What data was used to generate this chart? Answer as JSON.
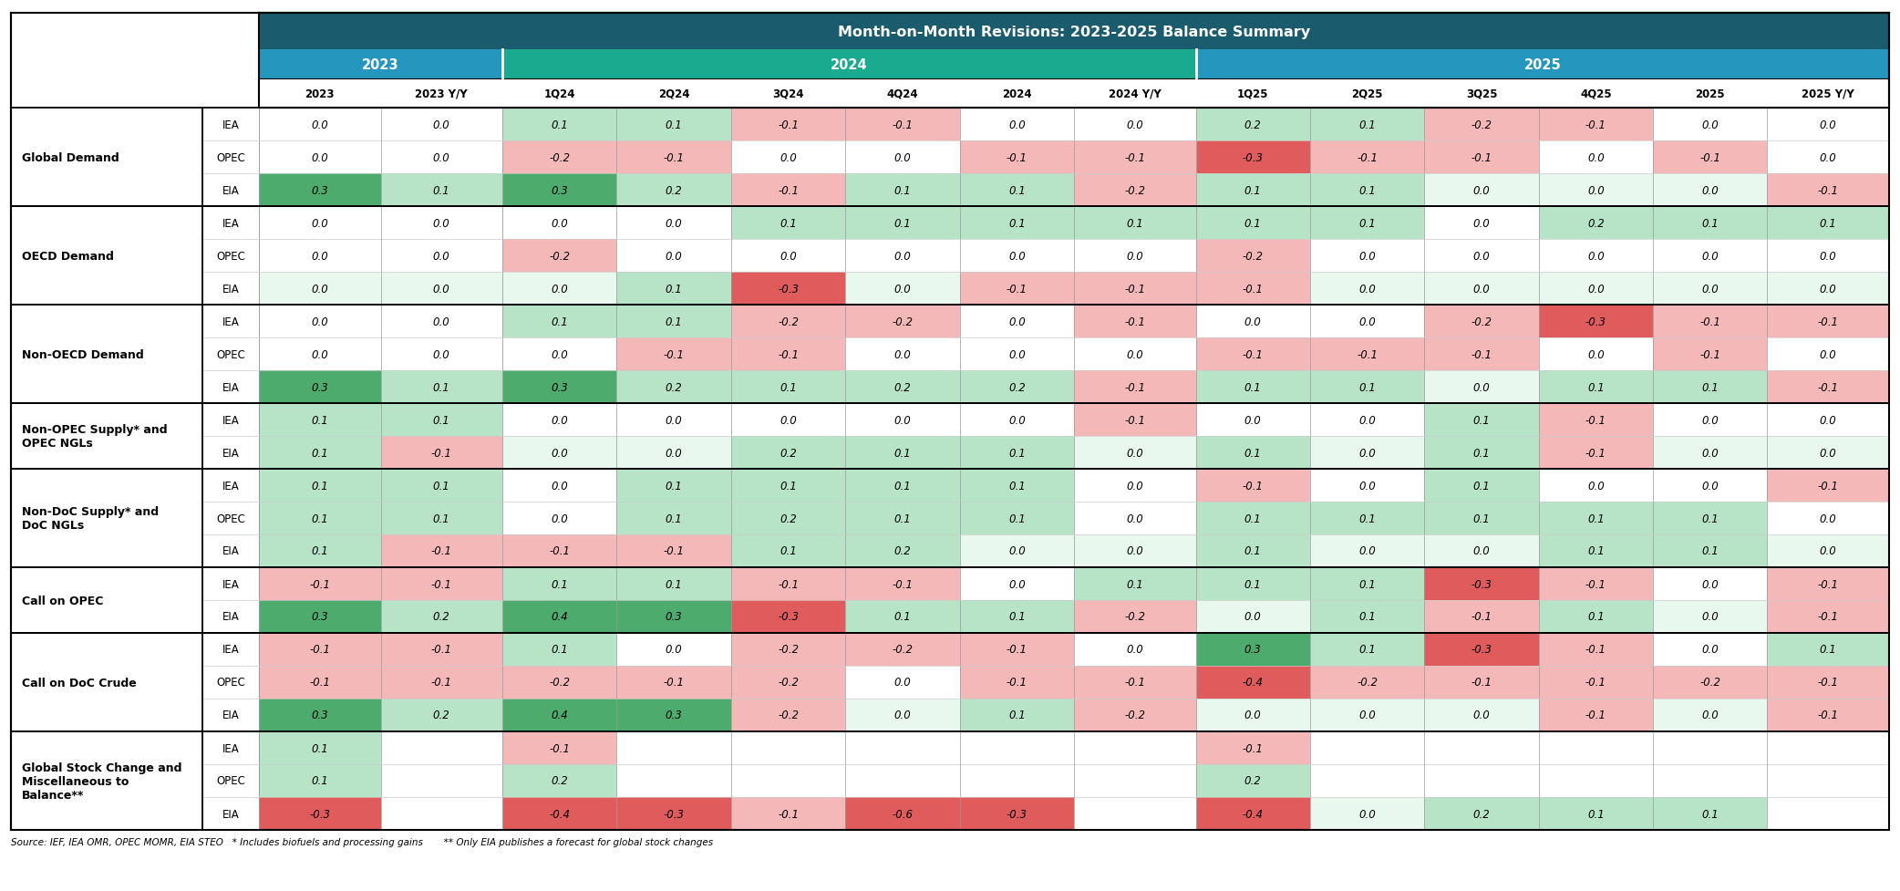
{
  "title": "Month-on-Month Revisions: 2023-2025 Balance Summary",
  "title_bg": "#1a5c6e",
  "header2023_bg": "#2596be",
  "header2024_bg": "#1aaa8f",
  "header2025_bg": "#2596be",
  "col_headers": [
    "2023",
    "2023 Y/Y",
    "1Q24",
    "2Q24",
    "3Q24",
    "4Q24",
    "2024",
    "2024 Y/Y",
    "1Q25",
    "2Q25",
    "3Q25",
    "4Q25",
    "2025",
    "2025 Y/Y"
  ],
  "row_groups": [
    {
      "label": "Global Demand",
      "n_label_lines": 1,
      "rows": [
        {
          "source": "IEA",
          "values": [
            0.0,
            0.0,
            0.1,
            0.1,
            -0.1,
            -0.1,
            0.0,
            0.0,
            0.2,
            0.1,
            -0.2,
            -0.1,
            0.0,
            0.0
          ]
        },
        {
          "source": "OPEC",
          "values": [
            0.0,
            0.0,
            -0.2,
            -0.1,
            0.0,
            0.0,
            -0.1,
            -0.1,
            -0.3,
            -0.1,
            -0.1,
            0.0,
            -0.1,
            0.0
          ]
        },
        {
          "source": "EIA",
          "values": [
            0.3,
            0.1,
            0.3,
            0.2,
            -0.1,
            0.1,
            0.1,
            -0.2,
            0.1,
            0.1,
            0.0,
            0.0,
            0.0,
            -0.1
          ]
        }
      ]
    },
    {
      "label": "OECD Demand",
      "n_label_lines": 1,
      "rows": [
        {
          "source": "IEA",
          "values": [
            0.0,
            0.0,
            0.0,
            0.0,
            0.1,
            0.1,
            0.1,
            0.1,
            0.1,
            0.1,
            0.0,
            0.2,
            0.1,
            0.1
          ]
        },
        {
          "source": "OPEC",
          "values": [
            0.0,
            0.0,
            -0.2,
            0.0,
            0.0,
            0.0,
            0.0,
            0.0,
            -0.2,
            0.0,
            0.0,
            0.0,
            0.0,
            0.0
          ]
        },
        {
          "source": "EIA",
          "values": [
            0.0,
            0.0,
            0.0,
            0.1,
            -0.3,
            0.0,
            -0.1,
            -0.1,
            -0.1,
            0.0,
            0.0,
            0.0,
            0.0,
            0.0
          ]
        }
      ]
    },
    {
      "label": "Non-OECD Demand",
      "n_label_lines": 1,
      "rows": [
        {
          "source": "IEA",
          "values": [
            0.0,
            0.0,
            0.1,
            0.1,
            -0.2,
            -0.2,
            0.0,
            -0.1,
            0.0,
            0.0,
            -0.2,
            -0.3,
            -0.1,
            -0.1
          ]
        },
        {
          "source": "OPEC",
          "values": [
            0.0,
            0.0,
            0.0,
            -0.1,
            -0.1,
            0.0,
            0.0,
            0.0,
            -0.1,
            -0.1,
            -0.1,
            0.0,
            -0.1,
            0.0
          ]
        },
        {
          "source": "EIA",
          "values": [
            0.3,
            0.1,
            0.3,
            0.2,
            0.1,
            0.2,
            0.2,
            -0.1,
            0.1,
            0.1,
            0.0,
            0.1,
            0.1,
            -0.1
          ]
        }
      ]
    },
    {
      "label": "Non-OPEC Supply* and\nOPEC NGLs",
      "n_label_lines": 2,
      "rows": [
        {
          "source": "IEA",
          "values": [
            0.1,
            0.1,
            0.0,
            0.0,
            0.0,
            0.0,
            0.0,
            -0.1,
            0.0,
            0.0,
            0.1,
            -0.1,
            0.0,
            0.0
          ]
        },
        {
          "source": "EIA",
          "values": [
            0.1,
            -0.1,
            0.0,
            0.0,
            0.2,
            0.1,
            0.1,
            0.0,
            0.1,
            0.0,
            0.1,
            -0.1,
            0.0,
            0.0
          ]
        }
      ]
    },
    {
      "label": "Non-DoC Supply* and\nDoC NGLs",
      "n_label_lines": 2,
      "rows": [
        {
          "source": "IEA",
          "values": [
            0.1,
            0.1,
            0.0,
            0.1,
            0.1,
            0.1,
            0.1,
            0.0,
            -0.1,
            0.0,
            0.1,
            0.0,
            0.0,
            -0.1
          ]
        },
        {
          "source": "OPEC",
          "values": [
            0.1,
            0.1,
            0.0,
            0.1,
            0.2,
            0.1,
            0.1,
            0.0,
            0.1,
            0.1,
            0.1,
            0.1,
            0.1,
            0.0
          ]
        },
        {
          "source": "EIA",
          "values": [
            0.1,
            -0.1,
            -0.1,
            -0.1,
            0.1,
            0.2,
            0.0,
            0.0,
            0.1,
            0.0,
            0.0,
            0.1,
            0.1,
            0.0
          ]
        }
      ]
    },
    {
      "label": "Call on OPEC",
      "n_label_lines": 1,
      "rows": [
        {
          "source": "IEA",
          "values": [
            -0.1,
            -0.1,
            0.1,
            0.1,
            -0.1,
            -0.1,
            0.0,
            0.1,
            0.1,
            0.1,
            -0.3,
            -0.1,
            0.0,
            -0.1
          ]
        },
        {
          "source": "EIA",
          "values": [
            0.3,
            0.2,
            0.4,
            0.3,
            -0.3,
            0.1,
            0.1,
            -0.2,
            0.0,
            0.1,
            -0.1,
            0.1,
            0.0,
            -0.1
          ]
        }
      ]
    },
    {
      "label": "Call on DoC Crude",
      "n_label_lines": 1,
      "rows": [
        {
          "source": "IEA",
          "values": [
            -0.1,
            -0.1,
            0.1,
            0.0,
            -0.2,
            -0.2,
            -0.1,
            0.0,
            0.3,
            0.1,
            -0.3,
            -0.1,
            0.0,
            0.1
          ]
        },
        {
          "source": "OPEC",
          "values": [
            -0.1,
            -0.1,
            -0.2,
            -0.1,
            -0.2,
            0.0,
            -0.1,
            -0.1,
            -0.4,
            -0.2,
            -0.1,
            -0.1,
            -0.2,
            -0.1
          ]
        },
        {
          "source": "EIA",
          "values": [
            0.3,
            0.2,
            0.4,
            0.3,
            -0.2,
            0.0,
            0.1,
            -0.2,
            0.0,
            0.0,
            0.0,
            -0.1,
            0.0,
            -0.1
          ]
        }
      ]
    },
    {
      "label": "Global Stock Change and\nMiscellaneous to\nBalance**",
      "n_label_lines": 3,
      "rows": [
        {
          "source": "IEA",
          "values": [
            0.1,
            null,
            -0.1,
            null,
            null,
            null,
            null,
            null,
            -0.1,
            null,
            null,
            null,
            null,
            null
          ]
        },
        {
          "source": "OPEC",
          "values": [
            0.1,
            null,
            0.2,
            null,
            null,
            null,
            null,
            null,
            0.2,
            null,
            null,
            null,
            null,
            null
          ]
        },
        {
          "source": "EIA",
          "values": [
            -0.3,
            null,
            -0.4,
            -0.3,
            -0.1,
            -0.6,
            -0.3,
            null,
            -0.4,
            0.0,
            0.2,
            0.1,
            0.1,
            null
          ]
        }
      ]
    }
  ],
  "footer": "Source: IEF, IEA OMR, OPEC MOMR, EIA STEO   * Includes biofuels and processing gains       ** Only EIA publishes a forecast for global stock changes",
  "color_pos_strong": "#4dab6e",
  "color_pos_weak": "#b7e4c7",
  "color_neg_strong": "#e05c5c",
  "color_neg_weak": "#f5b8b8",
  "color_white": "#ffffff",
  "eia_row_bg": "#e8f8ee",
  "header_text_color": "#ffffff"
}
